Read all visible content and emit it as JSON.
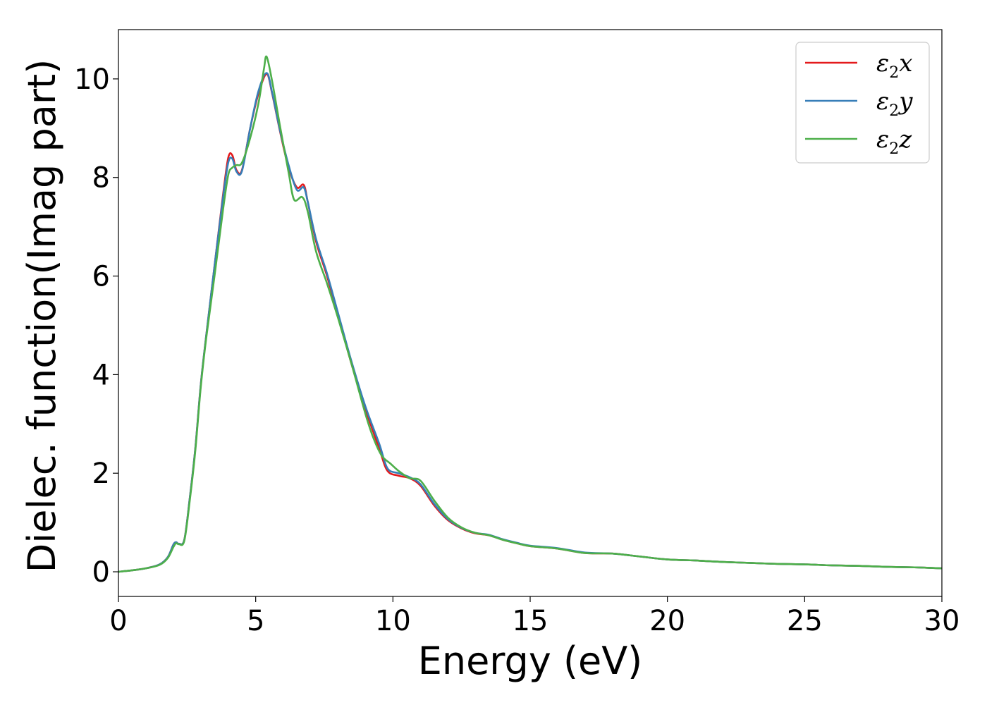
{
  "chart_data": {
    "type": "line",
    "title": "",
    "xlabel": "Energy (eV)",
    "ylabel": "Dielec. function(Imag part)",
    "xlim": [
      0,
      30
    ],
    "ylim": [
      -0.5,
      11
    ],
    "xticks": [
      0,
      5,
      10,
      15,
      20,
      25,
      30
    ],
    "yticks": [
      0,
      2,
      4,
      6,
      8,
      10
    ],
    "grid": false,
    "legend_position": "top-right",
    "series": [
      {
        "name": "ε2x",
        "legend_base": "ε",
        "legend_sub": "2",
        "legend_var": "x",
        "color": "#e41a1c",
        "x": [
          0,
          0.5,
          1.0,
          1.5,
          1.8,
          2.0,
          2.1,
          2.2,
          2.4,
          2.6,
          2.8,
          3.0,
          3.2,
          3.5,
          3.8,
          4.0,
          4.15,
          4.3,
          4.5,
          4.8,
          5.1,
          5.4,
          5.6,
          5.9,
          6.2,
          6.5,
          6.75,
          6.9,
          7.2,
          7.6,
          8.0,
          8.5,
          9.0,
          9.5,
          9.8,
          10.2,
          10.6,
          11.0,
          11.5,
          12.0,
          12.5,
          13.0,
          13.5,
          14.0,
          14.5,
          15.0,
          16.0,
          17.0,
          18.0,
          19.0,
          20.0,
          21.0,
          22.0,
          23.0,
          24.0,
          25.0,
          26.0,
          27.0,
          28.0,
          29.0,
          30.0
        ],
        "values": [
          0.0,
          0.03,
          0.07,
          0.15,
          0.3,
          0.55,
          0.6,
          0.57,
          0.65,
          1.5,
          2.5,
          3.8,
          4.8,
          6.2,
          7.6,
          8.4,
          8.45,
          8.15,
          8.15,
          9.0,
          9.7,
          10.1,
          9.7,
          8.9,
          8.2,
          7.8,
          7.85,
          7.5,
          6.7,
          6.0,
          5.2,
          4.2,
          3.3,
          2.5,
          2.05,
          1.95,
          1.9,
          1.75,
          1.35,
          1.05,
          0.88,
          0.78,
          0.74,
          0.65,
          0.58,
          0.52,
          0.47,
          0.38,
          0.37,
          0.31,
          0.25,
          0.23,
          0.2,
          0.18,
          0.16,
          0.15,
          0.13,
          0.12,
          0.1,
          0.09,
          0.07
        ]
      },
      {
        "name": "ε2y",
        "legend_base": "ε",
        "legend_sub": "2",
        "legend_var": "y",
        "color": "#377eb8",
        "x": [
          0,
          0.5,
          1.0,
          1.5,
          1.8,
          2.0,
          2.1,
          2.2,
          2.4,
          2.6,
          2.8,
          3.0,
          3.2,
          3.5,
          3.8,
          4.0,
          4.15,
          4.3,
          4.5,
          4.8,
          5.1,
          5.4,
          5.6,
          5.9,
          6.2,
          6.5,
          6.75,
          6.9,
          7.2,
          7.6,
          8.0,
          8.5,
          9.0,
          9.5,
          9.8,
          10.2,
          10.6,
          11.0,
          11.5,
          12.0,
          12.5,
          13.0,
          13.5,
          14.0,
          14.5,
          15.0,
          16.0,
          17.0,
          18.0,
          19.0,
          20.0,
          21.0,
          22.0,
          23.0,
          24.0,
          25.0,
          26.0,
          27.0,
          28.0,
          29.0,
          30.0
        ],
        "values": [
          0.0,
          0.03,
          0.07,
          0.15,
          0.3,
          0.55,
          0.6,
          0.57,
          0.65,
          1.5,
          2.5,
          3.8,
          4.8,
          6.2,
          7.55,
          8.3,
          8.38,
          8.12,
          8.13,
          9.0,
          9.75,
          10.12,
          9.72,
          8.92,
          8.25,
          7.75,
          7.8,
          7.5,
          6.75,
          6.05,
          5.25,
          4.25,
          3.35,
          2.6,
          2.1,
          2.0,
          1.92,
          1.78,
          1.38,
          1.07,
          0.89,
          0.79,
          0.75,
          0.66,
          0.59,
          0.53,
          0.48,
          0.39,
          0.37,
          0.31,
          0.25,
          0.23,
          0.2,
          0.18,
          0.16,
          0.15,
          0.13,
          0.12,
          0.1,
          0.09,
          0.07
        ]
      },
      {
        "name": "ε2z",
        "legend_base": "ε",
        "legend_sub": "2",
        "legend_var": "z",
        "color": "#4daf4a",
        "x": [
          0,
          0.5,
          1.0,
          1.5,
          1.8,
          2.0,
          2.1,
          2.2,
          2.4,
          2.6,
          2.8,
          3.0,
          3.2,
          3.5,
          3.8,
          4.0,
          4.15,
          4.3,
          4.5,
          4.8,
          5.1,
          5.3,
          5.4,
          5.6,
          5.9,
          6.2,
          6.4,
          6.7,
          6.9,
          7.2,
          7.6,
          8.0,
          8.5,
          9.0,
          9.3,
          9.6,
          9.9,
          10.2,
          10.6,
          11.0,
          11.5,
          12.0,
          12.5,
          13.0,
          13.5,
          14.0,
          14.5,
          15.0,
          16.0,
          17.0,
          18.0,
          19.0,
          20.0,
          21.0,
          22.0,
          23.0,
          24.0,
          25.0,
          26.0,
          27.0,
          28.0,
          29.0,
          30.0
        ],
        "values": [
          0.0,
          0.03,
          0.07,
          0.14,
          0.28,
          0.5,
          0.58,
          0.56,
          0.63,
          1.45,
          2.45,
          3.75,
          4.75,
          6.0,
          7.3,
          8.05,
          8.2,
          8.25,
          8.3,
          8.8,
          9.5,
          10.2,
          10.45,
          9.95,
          9.0,
          8.1,
          7.55,
          7.6,
          7.3,
          6.5,
          5.85,
          5.15,
          4.2,
          3.2,
          2.7,
          2.35,
          2.2,
          2.05,
          1.9,
          1.85,
          1.45,
          1.1,
          0.9,
          0.79,
          0.74,
          0.65,
          0.58,
          0.52,
          0.47,
          0.38,
          0.37,
          0.31,
          0.25,
          0.23,
          0.2,
          0.18,
          0.16,
          0.15,
          0.13,
          0.12,
          0.1,
          0.09,
          0.07
        ]
      }
    ]
  }
}
